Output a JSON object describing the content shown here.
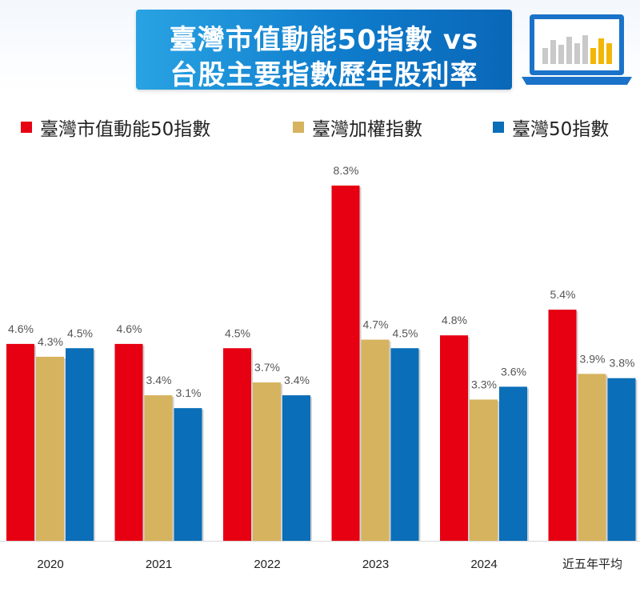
{
  "header": {
    "title_line1": "臺灣市值動能50指數 vs",
    "title_line2": "台股主要指數歷年股利率"
  },
  "colors": {
    "title_bg": "#1685d6",
    "series1": "#e60012",
    "series2": "#d6b35e",
    "series3": "#0a6eb8"
  },
  "chart_data": {
    "type": "bar",
    "categories": [
      "2020",
      "2021",
      "2022",
      "2023",
      "2024",
      "近五年平均"
    ],
    "series": [
      {
        "name": "臺灣市值動能50指數",
        "values": [
          4.6,
          4.6,
          4.5,
          8.3,
          4.8,
          5.4
        ],
        "labels": [
          "4.6%",
          "4.6%",
          "4.5%",
          "8.3%",
          "4.8%",
          "5.4%"
        ],
        "color": "#e60012"
      },
      {
        "name": "臺灣加權指數",
        "values": [
          4.3,
          3.4,
          3.7,
          4.7,
          3.3,
          3.9
        ],
        "labels": [
          "4.3%",
          "3.4%",
          "3.7%",
          "4.7%",
          "3.3%",
          "3.9%"
        ],
        "color": "#d6b35e"
      },
      {
        "name": "臺灣50指數",
        "values": [
          4.5,
          3.1,
          3.4,
          4.5,
          3.6,
          3.8
        ],
        "labels": [
          "4.5%",
          "3.1%",
          "3.4%",
          "4.5%",
          "3.6%",
          "3.8%"
        ],
        "color": "#0a6eb8"
      }
    ],
    "ylim": [
      0,
      9
    ],
    "grid": false,
    "legend_position": "top"
  }
}
